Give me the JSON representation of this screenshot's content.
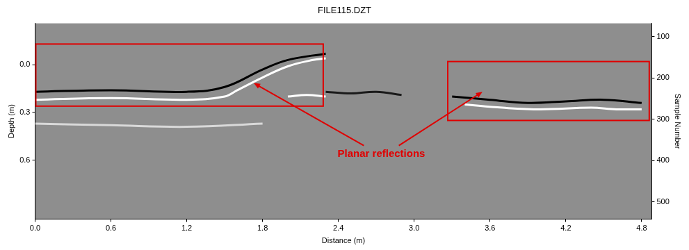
{
  "chart_data": {
    "type": "line",
    "title": "FILE115.DZT",
    "x_label": "Distance (m)",
    "y_label": "Depth (m)",
    "y2_label": "Sample Number",
    "xlim": [
      0,
      4.88
    ],
    "xticks": [
      {
        "value": 0,
        "label": "0.0"
      },
      0.6,
      1.2,
      1.8,
      2.4,
      {
        "value": 3,
        "label": "3.0"
      },
      3.6,
      4.2,
      4.8
    ],
    "ylim": [
      0.97,
      -0.26
    ],
    "yticks": [
      {
        "value": 0,
        "label": "0.0"
      },
      0.3,
      0.6
    ],
    "y2lim": [
      542,
      68
    ],
    "y2ticks": [
      100,
      200,
      300,
      400,
      500
    ],
    "grid": false,
    "series": [
      {
        "color": "#ffffff",
        "x": [
          0,
          0.6,
          1.2,
          1.5,
          1.6,
          1.8,
          2.0,
          2.2,
          2.3
        ],
        "values": [
          0.22,
          0.21,
          0.22,
          0.2,
          0.16,
          0.08,
          0.01,
          -0.03,
          -0.04
        ]
      },
      {
        "color": "#000000",
        "x": [
          0,
          0.6,
          1.2,
          1.5,
          1.8,
          2.0,
          2.3
        ],
        "values": [
          0.17,
          0.16,
          0.17,
          0.14,
          0.03,
          -0.03,
          -0.07
        ]
      },
      {
        "color": "#ffffff",
        "x": [
          2.0,
          2.15,
          2.3
        ],
        "values": [
          0.2,
          0.19,
          0.2
        ]
      },
      {
        "color": "#1a1a1a",
        "x": [
          2.3,
          2.5,
          2.7,
          2.9
        ],
        "values": [
          0.17,
          0.18,
          0.17,
          0.19
        ]
      },
      {
        "color": "#000000",
        "x": [
          3.3,
          3.6,
          3.9,
          4.2,
          4.5,
          4.8
        ],
        "values": [
          0.2,
          0.22,
          0.24,
          0.23,
          0.22,
          0.24
        ]
      },
      {
        "color": "#ffffff",
        "x": [
          3.4,
          3.7,
          4.0,
          4.4,
          4.6,
          4.8
        ],
        "values": [
          0.25,
          0.27,
          0.28,
          0.27,
          0.28,
          0.28
        ]
      },
      {
        "color": "#d9d9d9",
        "x": [
          0,
          0.6,
          1.2,
          1.8
        ],
        "values": [
          0.37,
          0.38,
          0.39,
          0.37
        ]
      }
    ],
    "boxes": [
      {
        "xlim": [
          0,
          2.28
        ],
        "ylim": [
          -0.13,
          0.26
        ]
      },
      {
        "xlim": [
          3.26,
          4.86
        ],
        "ylim": [
          -0.02,
          0.35
        ]
      }
    ],
    "annotations": [
      {
        "text": "Planar reflections",
        "x": 2.74,
        "y": 0.56,
        "arrows": [
          {
            "x": 1.73,
            "y": 0.115
          },
          {
            "x": 3.54,
            "y": 0.17
          }
        ]
      }
    ]
  }
}
